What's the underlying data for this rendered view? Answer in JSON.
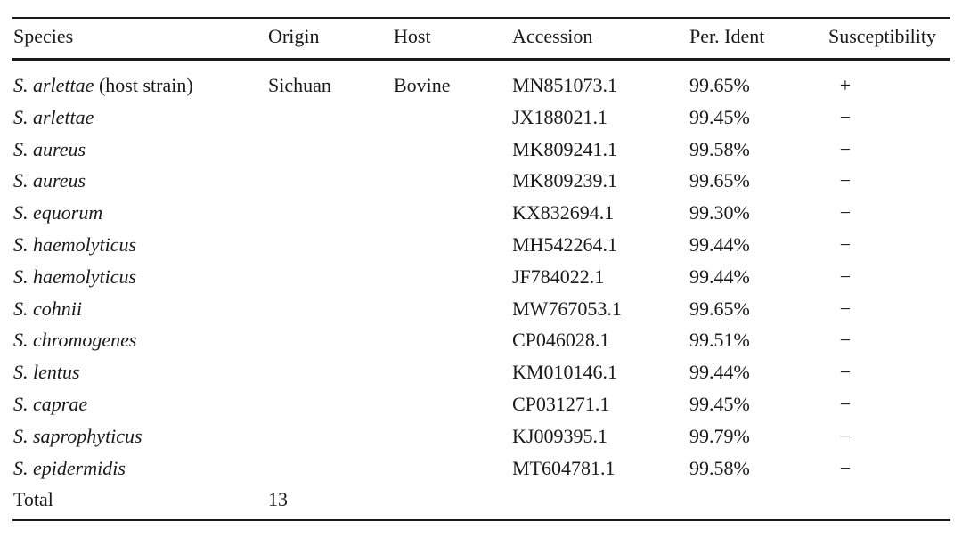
{
  "table": {
    "headers": {
      "species": "Species",
      "origin": "Origin",
      "host": "Host",
      "accession": "Accession",
      "per_ident": "Per. Ident",
      "susceptibility": "Susceptibility"
    },
    "rows": [
      {
        "species": "S. arlettae",
        "species_note": " (host strain)",
        "origin": "Sichuan",
        "host": "Bovine",
        "accession": "MN851073.1",
        "per_ident": "99.65%",
        "susceptibility": "+"
      },
      {
        "species": "S. arlettae",
        "species_note": "",
        "origin": "",
        "host": "",
        "accession": "JX188021.1",
        "per_ident": "99.45%",
        "susceptibility": "−"
      },
      {
        "species": "S. aureus",
        "species_note": "",
        "origin": "",
        "host": "",
        "accession": "MK809241.1",
        "per_ident": "99.58%",
        "susceptibility": "−"
      },
      {
        "species": "S. aureus",
        "species_note": "",
        "origin": "",
        "host": "",
        "accession": "MK809239.1",
        "per_ident": "99.65%",
        "susceptibility": "−"
      },
      {
        "species": "S. equorum",
        "species_note": "",
        "origin": "",
        "host": "",
        "accession": "KX832694.1",
        "per_ident": "99.30%",
        "susceptibility": "−"
      },
      {
        "species": "S. haemolyticus",
        "species_note": "",
        "origin": "",
        "host": "",
        "accession": "MH542264.1",
        "per_ident": "99.44%",
        "susceptibility": "−"
      },
      {
        "species": "S. haemolyticus",
        "species_note": "",
        "origin": "",
        "host": "",
        "accession": "JF784022.1",
        "per_ident": "99.44%",
        "susceptibility": "−"
      },
      {
        "species": "S. cohnii",
        "species_note": "",
        "origin": "",
        "host": "",
        "accession": "MW767053.1",
        "per_ident": "99.65%",
        "susceptibility": "−"
      },
      {
        "species": "S. chromogenes",
        "species_note": "",
        "origin": "",
        "host": "",
        "accession": "CP046028.1",
        "per_ident": "99.51%",
        "susceptibility": "−"
      },
      {
        "species": "S. lentus",
        "species_note": "",
        "origin": "",
        "host": "",
        "accession": "KM010146.1",
        "per_ident": "99.44%",
        "susceptibility": "−"
      },
      {
        "species": "S. caprae",
        "species_note": "",
        "origin": "",
        "host": "",
        "accession": "CP031271.1",
        "per_ident": "99.45%",
        "susceptibility": "−"
      },
      {
        "species": "S. saprophyticus",
        "species_note": "",
        "origin": "",
        "host": "",
        "accession": "KJ009395.1",
        "per_ident": "99.79%",
        "susceptibility": "−"
      },
      {
        "species": "S. epidermidis",
        "species_note": "",
        "origin": "",
        "host": "",
        "accession": "MT604781.1",
        "per_ident": "99.58%",
        "susceptibility": "−"
      }
    ],
    "total": {
      "label": "Total",
      "value": "13"
    }
  }
}
